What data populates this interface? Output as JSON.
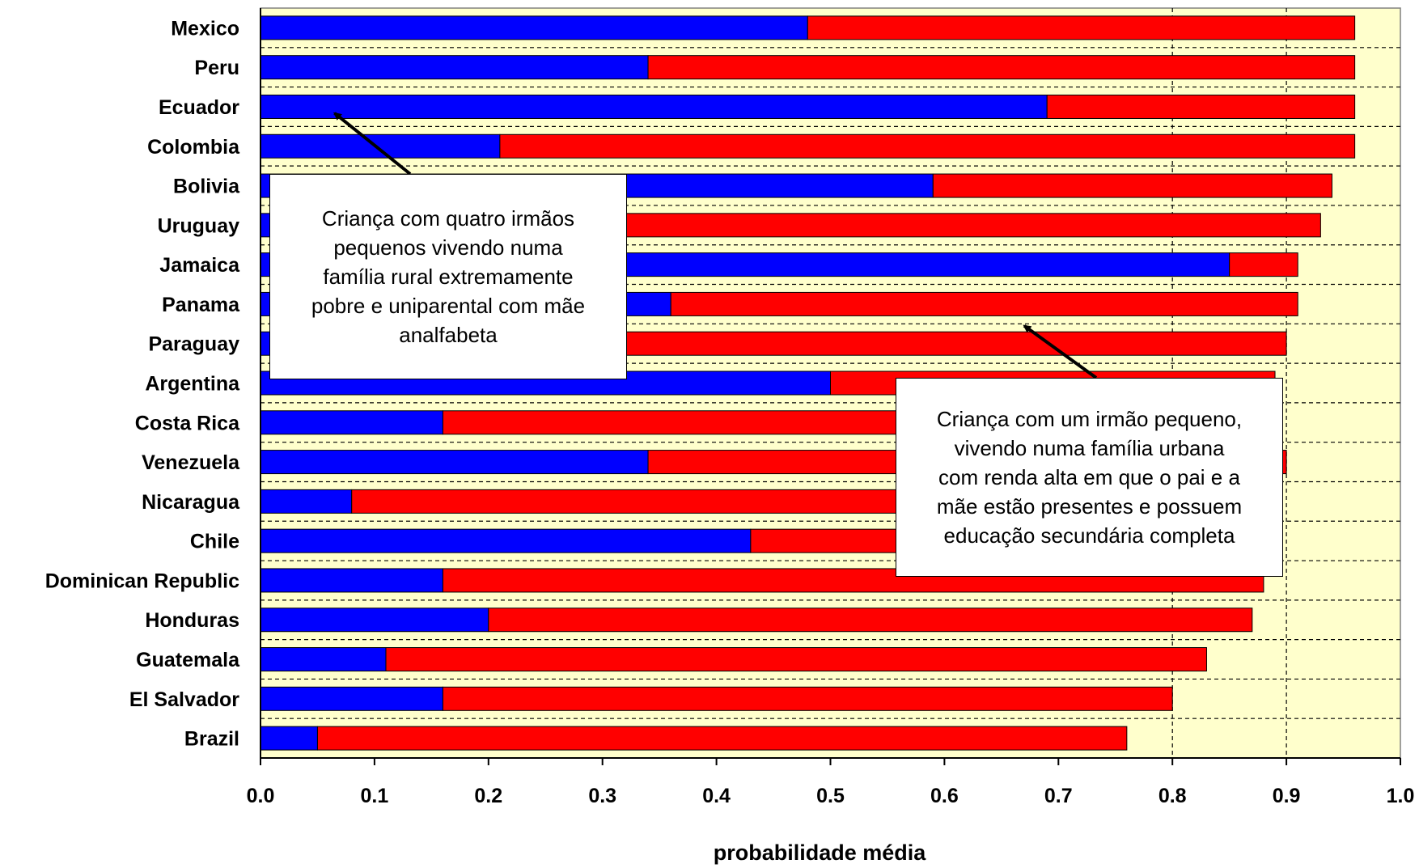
{
  "chart_data": {
    "type": "bar",
    "orientation": "horizontal",
    "stacked": true,
    "categories": [
      "Mexico",
      "Peru",
      "Ecuador",
      "Colombia",
      "Bolivia",
      "Uruguay",
      "Jamaica",
      "Panama",
      "Paraguay",
      "Argentina",
      "Costa Rica",
      "Venezuela",
      "Nicaragua",
      "Chile",
      "Dominican Republic",
      "Honduras",
      "Guatemala",
      "El Salvador",
      "Brazil"
    ],
    "series": [
      {
        "values": [
          0.48,
          0.34,
          0.69,
          0.21,
          0.59,
          0.01,
          0.85,
          0.36,
          0.01,
          0.5,
          0.16,
          0.34,
          0.08,
          0.43,
          0.16,
          0.2,
          0.11,
          0.16,
          0.05
        ]
      },
      {
        "values": [
          0.48,
          0.62,
          0.27,
          0.75,
          0.35,
          0.92,
          0.06,
          0.55,
          0.89,
          0.39,
          0.73,
          0.56,
          0.8,
          0.45,
          0.72,
          0.67,
          0.72,
          0.64,
          0.71
        ]
      }
    ],
    "series_colors": [
      "#0000ff",
      "#ff0000"
    ],
    "xlabel": "probabilidade média",
    "xlim": [
      0.0,
      1.0
    ],
    "xticks": [
      "0.0",
      "0.1",
      "0.2",
      "0.3",
      "0.4",
      "0.5",
      "0.6",
      "0.7",
      "0.8",
      "0.9",
      "1.0"
    ],
    "grid": "dashed horizontal gridlines; vertical reference lines at 0.8 and 0.9",
    "plot_background": "#ffffcc",
    "annotations": [
      {
        "lines": [
          "Criança com quatro irmãos",
          "pequenos vivendo numa",
          "família rural extremamente",
          "pobre e uniparental com mãe",
          "analfabeta"
        ],
        "points_to": {
          "category": "Ecuador",
          "x": 0.065
        }
      },
      {
        "lines": [
          "Criança com um irmão pequeno,",
          "vivendo numa família urbana",
          "com renda alta em que o pai e a",
          "mãe estão presentes e possuem",
          "educação secundária completa"
        ],
        "points_to": {
          "category": "Paraguay",
          "x": 0.67
        }
      }
    ]
  }
}
